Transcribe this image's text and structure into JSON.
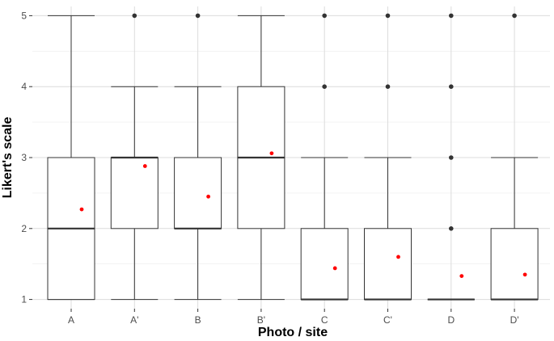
{
  "chart_data": {
    "type": "boxplot",
    "xlabel": "Photo / site",
    "ylabel": "Likert's scale",
    "ylim": [
      0.87,
      5.13
    ],
    "yticks": [
      1,
      2,
      3,
      4,
      5
    ],
    "grid": true,
    "categories": [
      "A",
      "A'",
      "B",
      "B'",
      "C",
      "C'",
      "D",
      "D'"
    ],
    "boxes": [
      {
        "min": 1,
        "q1": 1,
        "median": 2,
        "q3": 3,
        "max": 5,
        "outliers": [],
        "mean": 2.27
      },
      {
        "min": 1,
        "q1": 2,
        "median": 3,
        "q3": 3,
        "max": 4,
        "outliers": [
          5
        ],
        "mean": 2.88
      },
      {
        "min": 1,
        "q1": 2,
        "median": 2,
        "q3": 3,
        "max": 4,
        "outliers": [
          5
        ],
        "mean": 2.45
      },
      {
        "min": 1,
        "q1": 2,
        "median": 3,
        "q3": 4,
        "max": 5,
        "outliers": [],
        "mean": 3.06
      },
      {
        "min": 1,
        "q1": 1,
        "median": 1,
        "q3": 2,
        "max": 3,
        "outliers": [
          4,
          5
        ],
        "mean": 1.44
      },
      {
        "min": 1,
        "q1": 1,
        "median": 1,
        "q3": 2,
        "max": 3,
        "outliers": [
          4,
          5
        ],
        "mean": 1.6
      },
      {
        "min": 1,
        "q1": 1,
        "median": 1,
        "q3": 1,
        "max": 1,
        "outliers": [
          2,
          3,
          4,
          5
        ],
        "mean": 1.33
      },
      {
        "min": 1,
        "q1": 1,
        "median": 1,
        "q3": 2,
        "max": 3,
        "outliers": [
          5
        ],
        "mean": 1.35
      }
    ],
    "colors": {
      "box": "#333333",
      "outlier": "#333333",
      "mean": "#ff0000",
      "grid_major": "#dcdcdc",
      "grid_minor": "#ececec"
    }
  }
}
